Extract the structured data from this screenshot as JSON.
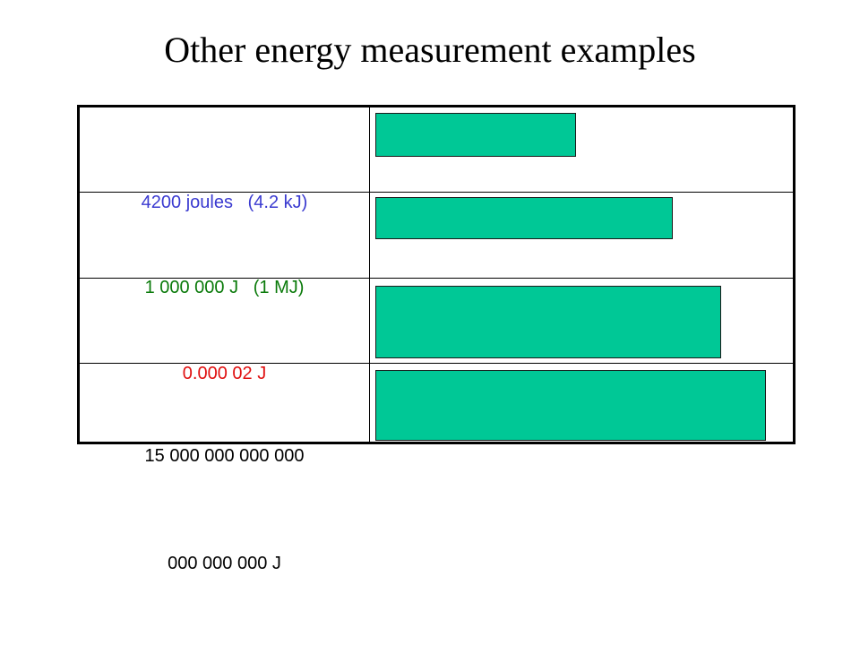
{
  "title": "Other energy measurement examples",
  "colors": {
    "blue": "#3a3ad0",
    "green": "#0a7a0a",
    "red": "#e01010",
    "black": "#000000",
    "cover": "#00c896"
  },
  "rows": [
    {
      "left_lines": [
        "4200 joules   (4.2 kJ)"
      ],
      "color": "blue",
      "answer_hidden": true
    },
    {
      "left_lines": [
        "1 000 000 J   (1 MJ)"
      ],
      "color": "green",
      "answer_hidden": true
    },
    {
      "left_lines": [
        "0.000 02 J"
      ],
      "color": "red",
      "answer_hidden": true
    },
    {
      "left_lines": [
        "15 000 000 000 000",
        "000 000 000 J"
      ],
      "color": "black",
      "answer_hidden": true
    }
  ]
}
